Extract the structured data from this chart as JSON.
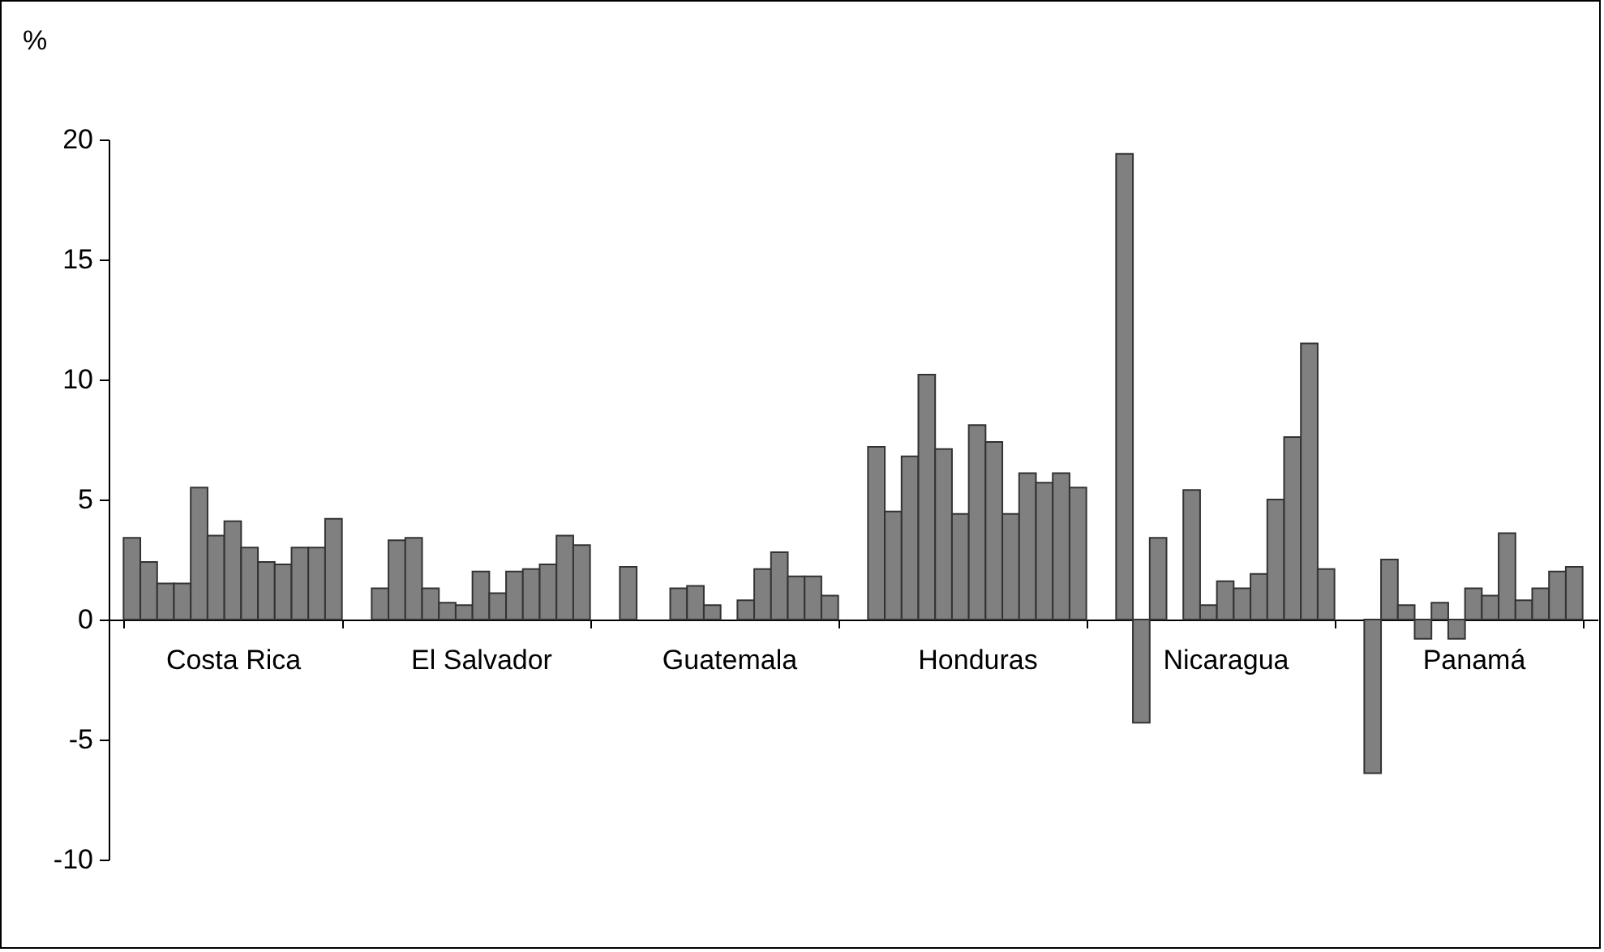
{
  "chart_data": {
    "type": "bar",
    "ylabel": "%",
    "categories": [
      "Costa Rica",
      "El Salvador",
      "Guatemala",
      "Honduras",
      "Nicaragua",
      "Panamá"
    ],
    "ylim": [
      -10,
      20
    ],
    "yticks": [
      -10,
      -5,
      0,
      5,
      10,
      15,
      20
    ],
    "grid": false,
    "legend": false,
    "series": [
      {
        "color": "#808080",
        "values": [
          3.4,
          1.3,
          2.2,
          7.2,
          19.4,
          -6.4
        ]
      },
      {
        "color": "#808080",
        "values": [
          2.4,
          3.3,
          null,
          4.5,
          -4.3,
          2.5
        ]
      },
      {
        "color": "#808080",
        "values": [
          1.5,
          3.4,
          null,
          6.8,
          3.4,
          0.6
        ]
      },
      {
        "color": "#808080",
        "values": [
          1.5,
          1.3,
          1.3,
          10.2,
          null,
          -0.8
        ]
      },
      {
        "color": "#808080",
        "values": [
          5.5,
          0.7,
          1.4,
          7.1,
          5.4,
          0.7
        ]
      },
      {
        "color": "#808080",
        "values": [
          3.5,
          0.6,
          0.6,
          4.4,
          0.6,
          -0.8
        ]
      },
      {
        "color": "#808080",
        "values": [
          4.1,
          2.0,
          null,
          8.1,
          1.6,
          1.3
        ]
      },
      {
        "color": "#808080",
        "values": [
          3.0,
          1.1,
          0.8,
          7.4,
          1.3,
          1.0
        ]
      },
      {
        "color": "#808080",
        "values": [
          2.4,
          2.0,
          2.1,
          4.4,
          1.9,
          3.6
        ]
      },
      {
        "color": "#808080",
        "values": [
          2.3,
          2.1,
          2.8,
          6.1,
          5.0,
          0.8
        ]
      },
      {
        "color": "#808080",
        "values": [
          3.0,
          2.3,
          1.8,
          5.7,
          7.6,
          1.3
        ]
      },
      {
        "color": "#808080",
        "values": [
          3.0,
          3.5,
          1.8,
          6.1,
          11.5,
          2.0
        ]
      },
      {
        "color": "#808080",
        "values": [
          4.2,
          3.1,
          1.0,
          5.5,
          2.1,
          2.2
        ]
      }
    ]
  }
}
